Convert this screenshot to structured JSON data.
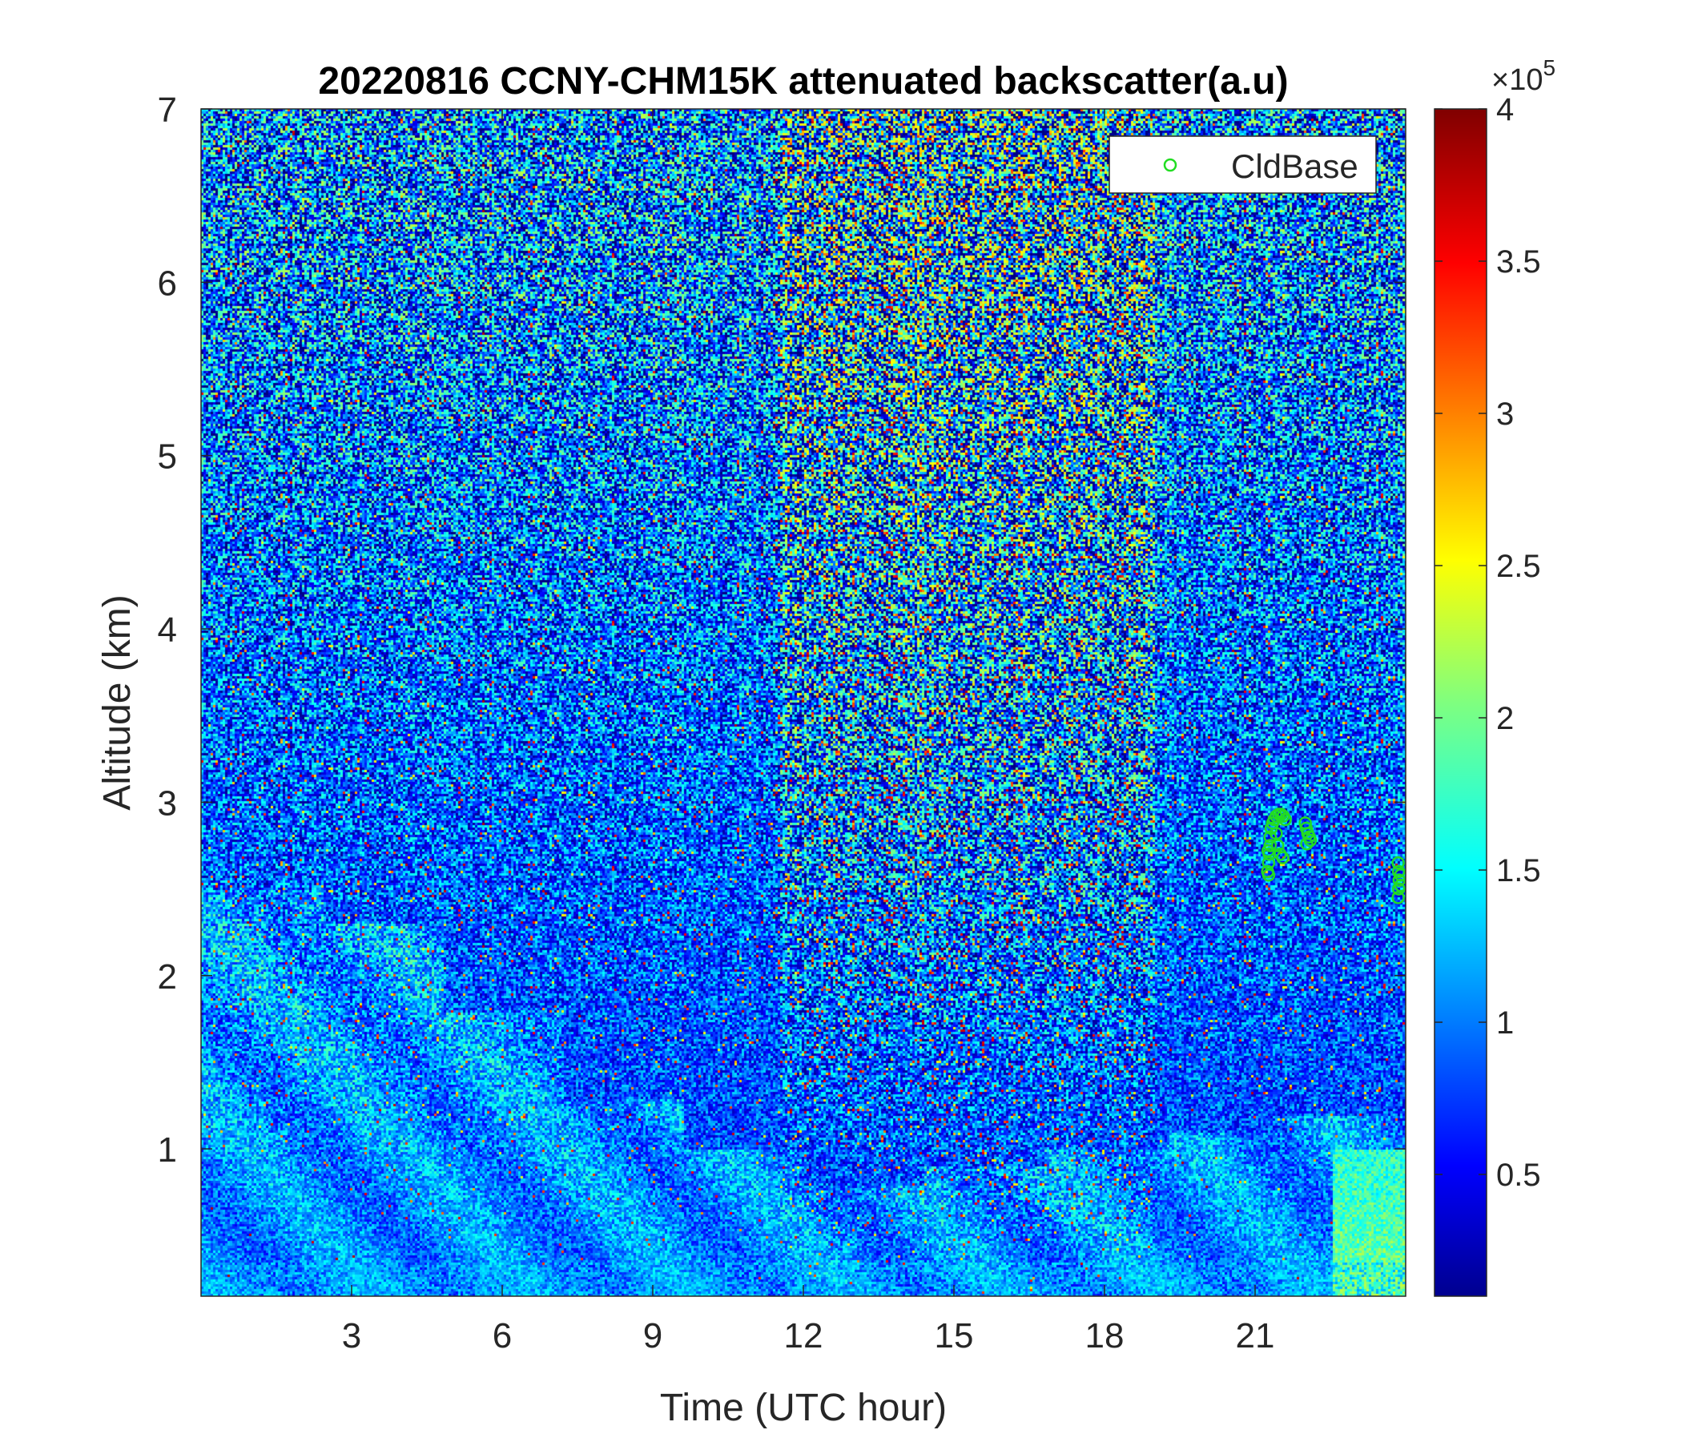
{
  "chart_data": {
    "type": "heatmap",
    "title": "20220816 CCNY-CHM15K attenuated backscatter(a.u)",
    "xlabel": "Time (UTC hour)",
    "ylabel": "Altitude (km)",
    "xlim": [
      0,
      24
    ],
    "ylim": [
      0.15,
      7
    ],
    "xticks": [
      3,
      6,
      9,
      12,
      15,
      18,
      21
    ],
    "xtick_labels": [
      "3",
      "6",
      "9",
      "12",
      "15",
      "18",
      "21"
    ],
    "yticks": [
      1,
      2,
      3,
      4,
      5,
      6,
      7
    ],
    "ytick_labels": [
      "1",
      "2",
      "3",
      "4",
      "5",
      "6",
      "7"
    ],
    "colorbar": {
      "clim": [
        0.1,
        4
      ],
      "ticks": [
        0.5,
        1,
        1.5,
        2,
        2.5,
        3,
        3.5,
        4
      ],
      "tick_labels": [
        "0.5",
        "1",
        "1.5",
        "2",
        "2.5",
        "3",
        "3.5",
        "4"
      ],
      "exponent_label": "×10",
      "exponent_power": "5",
      "colormap": "jet"
    },
    "legend": {
      "entries": [
        "CldBase"
      ],
      "location": "top-right",
      "marker_color": "#22dd22"
    },
    "series": [
      {
        "name": "CldBase",
        "marker": "circle",
        "color": "#22dd22",
        "points": [
          [
            21.25,
            2.6
          ],
          [
            21.27,
            2.65
          ],
          [
            21.28,
            2.7
          ],
          [
            21.3,
            2.75
          ],
          [
            21.3,
            2.8
          ],
          [
            21.32,
            2.85
          ],
          [
            21.35,
            2.88
          ],
          [
            21.38,
            2.9
          ],
          [
            21.42,
            2.92
          ],
          [
            21.47,
            2.93
          ],
          [
            21.52,
            2.93
          ],
          [
            21.56,
            2.92
          ],
          [
            21.6,
            2.9
          ],
          [
            21.42,
            2.82
          ],
          [
            21.45,
            2.75
          ],
          [
            21.5,
            2.7
          ],
          [
            21.55,
            2.68
          ],
          [
            21.27,
            2.58
          ],
          [
            21.26,
            2.72
          ],
          [
            22.0,
            2.88
          ],
          [
            22.02,
            2.85
          ],
          [
            22.05,
            2.82
          ],
          [
            22.08,
            2.8
          ],
          [
            22.1,
            2.78
          ],
          [
            22.03,
            2.76
          ],
          [
            23.85,
            2.65
          ],
          [
            23.86,
            2.6
          ],
          [
            23.87,
            2.55
          ],
          [
            23.86,
            2.5
          ],
          [
            23.85,
            2.45
          ],
          [
            23.9,
            2.58
          ],
          [
            23.9,
            2.52
          ]
        ]
      }
    ],
    "field_description": {
      "background_level": 0.6,
      "upper_noise_level": 1.0,
      "aerosol_layer_top_km": [
        2.5,
        2.3,
        1.8,
        1.3,
        1.0,
        0.8,
        0.9,
        1.0,
        1.1,
        1.2
      ],
      "surface_enhancement_hours": [
        22.5,
        24
      ],
      "high_noise_hours": [
        11.5,
        19
      ]
    }
  }
}
